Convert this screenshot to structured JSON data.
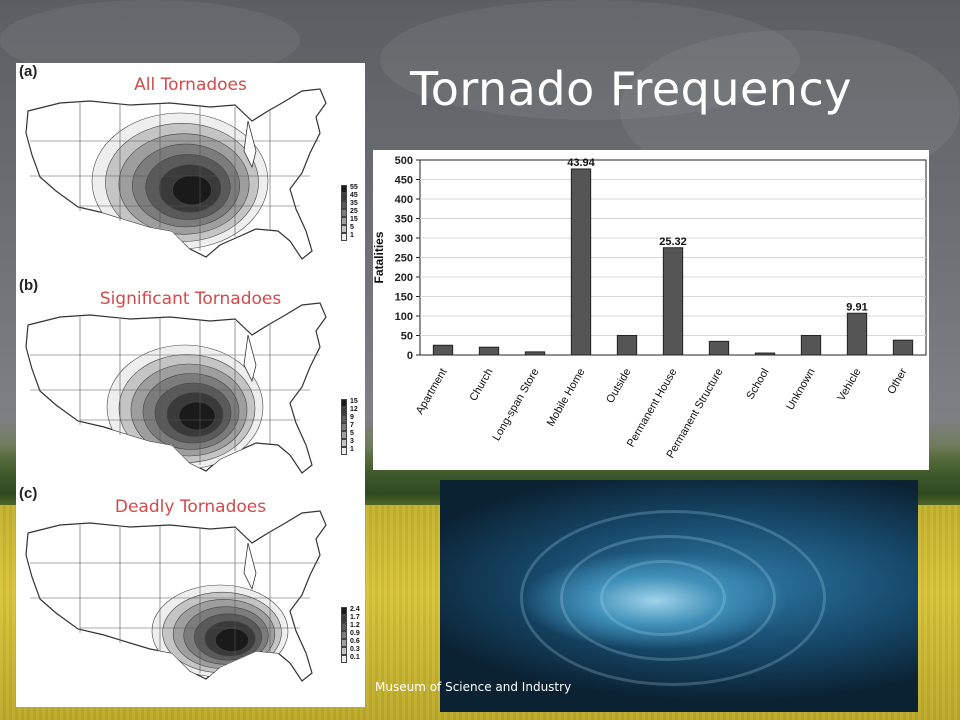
{
  "slide": {
    "title": "Tornado Frequency",
    "credit": "Museum of Science and Industry"
  },
  "maps": [
    {
      "letter": "(a)",
      "label": "All Tornadoes",
      "legend": [
        "55",
        "45",
        "35",
        "25",
        "15",
        "5",
        "1"
      ]
    },
    {
      "letter": "(b)",
      "label": "Significant Tornadoes",
      "legend": [
        "15",
        "12",
        "9",
        "7",
        "5",
        "3",
        "1"
      ]
    },
    {
      "letter": "(c)",
      "label": "Deadly Tornadoes",
      "legend": [
        "2.4",
        "1.7",
        "1.2",
        "0.9",
        "0.6",
        "0.3",
        "0.1"
      ]
    }
  ],
  "chart_data": {
    "type": "bar",
    "title": "",
    "xlabel": "",
    "ylabel": "Fatalities",
    "ylim": [
      0,
      500
    ],
    "yticks": [
      0,
      50,
      100,
      150,
      200,
      250,
      300,
      350,
      400,
      450,
      500
    ],
    "grid": true,
    "categories": [
      "Apartment",
      "Church",
      "Long-span Store",
      "Mobile Home",
      "Outside",
      "Permanent House",
      "Permanent Structure",
      "School",
      "Unknown",
      "Vehicle",
      "Other"
    ],
    "values": [
      25,
      20,
      8,
      477,
      50,
      275,
      35,
      5,
      50,
      107,
      38
    ],
    "data_labels": {
      "3": "43.94",
      "5": "25.32",
      "9": "9.91"
    },
    "bar_color": "#555555"
  }
}
